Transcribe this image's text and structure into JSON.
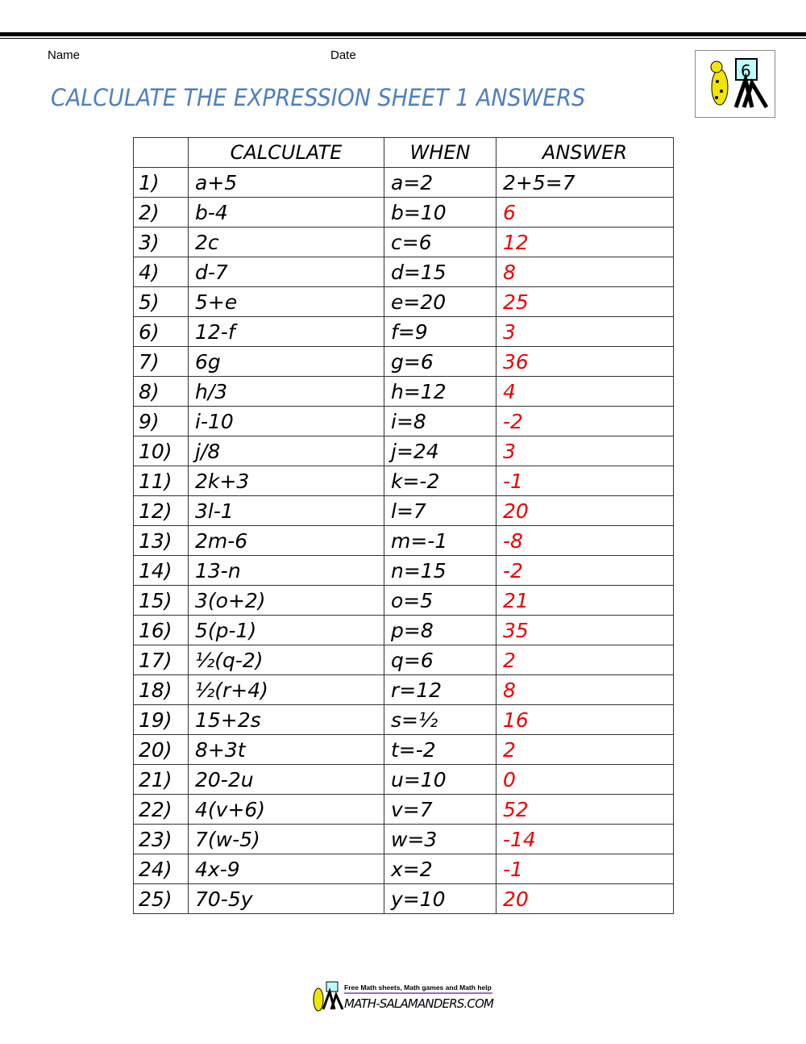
{
  "header": {
    "name_label": "Name",
    "date_label": "Date",
    "title": "CALCULATE THE EXPRESSION SHEET 1 ANSWERS",
    "logo_grade": "6"
  },
  "table": {
    "columns": [
      "",
      "CALCULATE",
      "WHEN",
      "ANSWER"
    ],
    "rows": [
      [
        "1)",
        "a+5",
        "a=2",
        "2+5=7"
      ],
      [
        "2)",
        "b-4",
        "b=10",
        "6"
      ],
      [
        "3)",
        "2c",
        "c=6",
        "12"
      ],
      [
        "4)",
        "d-7",
        "d=15",
        "8"
      ],
      [
        "5)",
        "5+e",
        "e=20",
        "25"
      ],
      [
        "6)",
        "12-f",
        "f=9",
        "3"
      ],
      [
        "7)",
        "6g",
        "g=6",
        "36"
      ],
      [
        "8)",
        "h/3",
        "h=12",
        "4"
      ],
      [
        "9)",
        "i-10",
        "i=8",
        "-2"
      ],
      [
        "10)",
        "j/8",
        "j=24",
        "3"
      ],
      [
        "11)",
        "2k+3",
        "k=-2",
        "-1"
      ],
      [
        "12)",
        "3l-1",
        "l=7",
        "20"
      ],
      [
        "13)",
        "2m-6",
        "m=-1",
        "-8"
      ],
      [
        "14)",
        "13-n",
        "n=15",
        "-2"
      ],
      [
        "15)",
        "3(o+2)",
        "o=5",
        "21"
      ],
      [
        "16)",
        "5(p-1)",
        "p=8",
        "35"
      ],
      [
        "17)",
        "½(q-2)",
        "q=6",
        "2"
      ],
      [
        "18)",
        "½(r+4)",
        "r=12",
        "8"
      ],
      [
        "19)",
        "15+2s",
        "s=½",
        "16"
      ],
      [
        "20)",
        "8+3t",
        "t=-2",
        "2"
      ],
      [
        "21)",
        "20-2u",
        "u=10",
        "0"
      ],
      [
        "22)",
        "4(v+6)",
        "v=7",
        "52"
      ],
      [
        "23)",
        "7(w-5)",
        "w=3",
        "-14"
      ],
      [
        "24)",
        "4x-9",
        "x=2",
        "-1"
      ],
      [
        "25)",
        "70-5y",
        "y=10",
        "20"
      ]
    ]
  },
  "footer": {
    "tagline": "Free Math sheets, Math games and Math help",
    "site": "MATH-SALAMANDERS.COM"
  },
  "colors": {
    "title": "#4f7fc0",
    "answer": "#ee0000"
  }
}
